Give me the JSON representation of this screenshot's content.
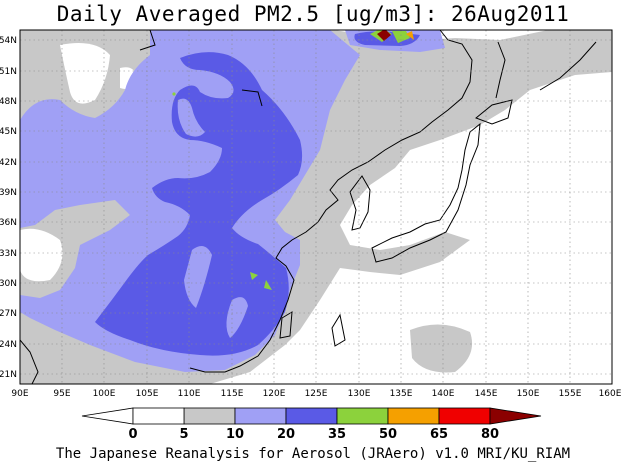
{
  "title": "Daily Averaged PM2.5 [ug/m3]: 26Aug2011",
  "credit": "The Japanese Reanalysis for Aerosol (JRAero) v1.0 MRI/KU_RIAM",
  "map": {
    "lon_range": [
      90,
      160
    ],
    "lat_range": [
      20,
      55
    ],
    "lon_ticks": [
      "90E",
      "95E",
      "100E",
      "105E",
      "110E",
      "115E",
      "120E",
      "125E",
      "130E",
      "135E",
      "140E",
      "145E",
      "150E",
      "155E",
      "160E"
    ],
    "lat_ticks": [
      "21N",
      "24N",
      "27N",
      "30N",
      "33N",
      "36N",
      "39N",
      "42N",
      "45N",
      "48N",
      "51N",
      "54N"
    ],
    "grid": true
  },
  "colorbar": {
    "labels": [
      "0",
      "5",
      "10",
      "20",
      "35",
      "50",
      "65",
      "80"
    ],
    "colors": [
      "#ffffff",
      "#c8c8c8",
      "#a0a0f5",
      "#5a5ae6",
      "#8cd23c",
      "#f5a000",
      "#f00000",
      "#8b0000"
    ]
  }
}
